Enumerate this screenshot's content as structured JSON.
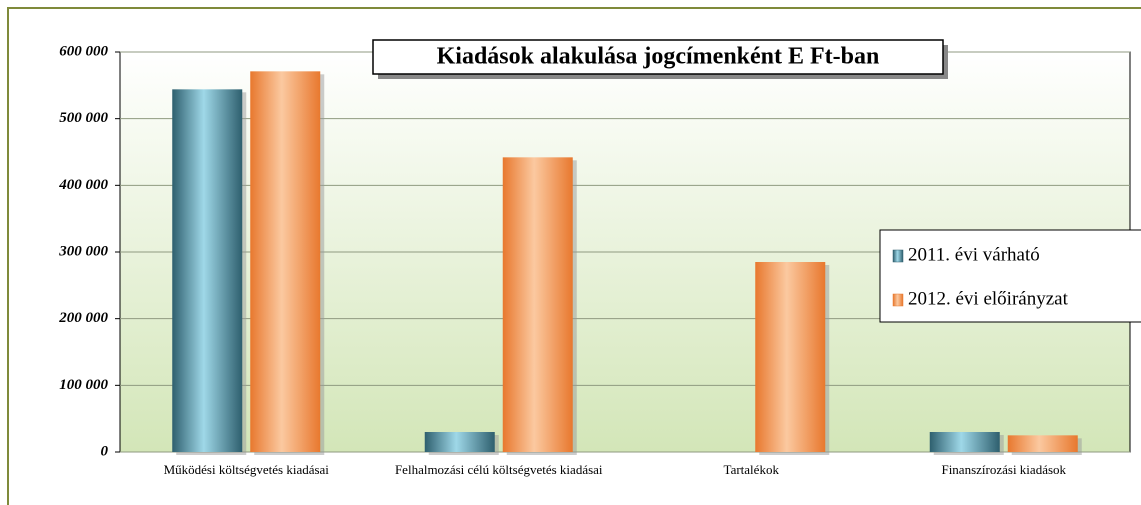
{
  "chart_data": {
    "type": "bar",
    "title": "Kiadások alakulása jogcímenként E Ft-ban",
    "categories": [
      "Működési költségvetés kiadásai",
      "Felhalmozási célú költségvetés kiadásai",
      "Tartalékok",
      "Finanszírozási kiadások"
    ],
    "series": [
      {
        "name": "2011. évi várható",
        "color": "#2e5f6e",
        "values": [
          544000,
          30000,
          0,
          30000
        ]
      },
      {
        "name": "2012. évi előirányzat",
        "color": "#e8782e",
        "values": [
          571000,
          442000,
          285000,
          25000
        ]
      }
    ],
    "ylim": [
      0,
      600000
    ],
    "yticks": [
      0,
      {
        "value": 100000,
        "label": "100 000"
      },
      {
        "value": 200000,
        "label": "200 000"
      },
      {
        "value": 300000,
        "label": "300 000"
      },
      {
        "value": 400000,
        "label": "400 000"
      },
      {
        "value": 500000,
        "label": "500 000"
      },
      {
        "value": 600000,
        "label": "600 000"
      }
    ],
    "grid": true,
    "legend": "right"
  }
}
